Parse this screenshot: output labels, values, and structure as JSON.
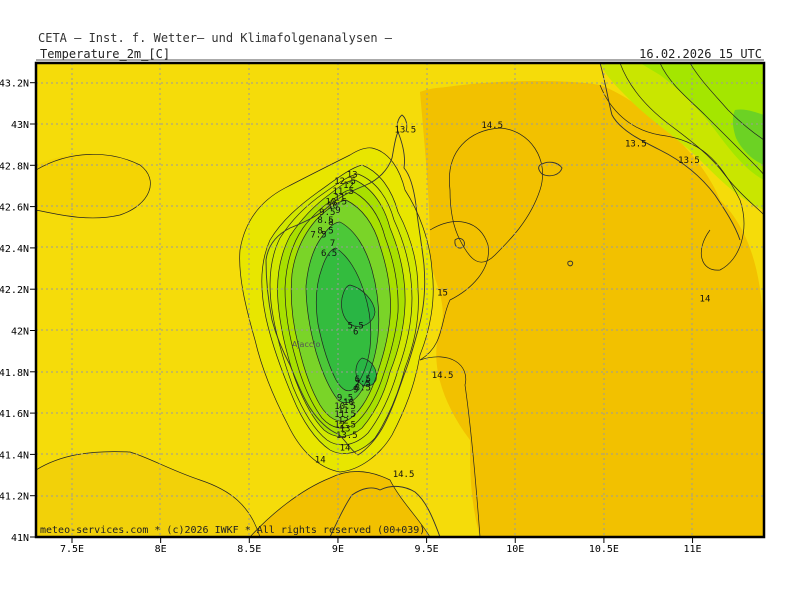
{
  "header": {
    "title": "CETA — Inst. f. Wetter— und Klimafolgenanalysen —",
    "variable": "Temperature_2m_[C]",
    "valid_time": "16.02.2026 15 UTC"
  },
  "footer": {
    "credit": "meteo-services.com * (c)2026 IWKF * All rights reserved (00+039)"
  },
  "axes": {
    "lon_ticks": [
      "7.5E",
      "8E",
      "8.5E",
      "9E",
      "9.5E",
      "10E",
      "10.5E",
      "11E"
    ],
    "lat_ticks": [
      "43.2N",
      "43N",
      "42.8N",
      "42.6N",
      "42.4N",
      "42.2N",
      "42N",
      "41.8N",
      "41.6N",
      "41.4N",
      "41.2N",
      "41N"
    ]
  },
  "places": [
    {
      "name": "Ajaccio",
      "lon": 8.74,
      "lat": 41.92
    }
  ],
  "contour_labels": [
    {
      "text": "13.5",
      "lon": 9.38,
      "lat": 42.96
    },
    {
      "text": "14.5",
      "lon": 9.87,
      "lat": 42.98
    },
    {
      "text": "13.5",
      "lon": 10.68,
      "lat": 42.89
    },
    {
      "text": "13.5",
      "lon": 10.98,
      "lat": 42.81
    },
    {
      "text": "14",
      "lon": 11.07,
      "lat": 42.14
    },
    {
      "text": "15",
      "lon": 9.59,
      "lat": 42.17
    },
    {
      "text": "14.5",
      "lon": 9.59,
      "lat": 41.77
    },
    {
      "text": "13",
      "lon": 9.08,
      "lat": 42.74
    },
    {
      "text": "12.5",
      "lon": 9.04,
      "lat": 42.71
    },
    {
      "text": "12",
      "lon": 9.06,
      "lat": 42.69
    },
    {
      "text": "11.5",
      "lon": 9.03,
      "lat": 42.66
    },
    {
      "text": "11",
      "lon": 9.01,
      "lat": 42.63
    },
    {
      "text": "10.5",
      "lon": 8.99,
      "lat": 42.61
    },
    {
      "text": "10",
      "lon": 8.97,
      "lat": 42.59
    },
    {
      "text": "9",
      "lon": 9.0,
      "lat": 42.57
    },
    {
      "text": "9.5",
      "lon": 8.94,
      "lat": 42.56
    },
    {
      "text": "8.5",
      "lon": 8.93,
      "lat": 42.52
    },
    {
      "text": "8",
      "lon": 8.96,
      "lat": 42.51
    },
    {
      "text": "8.5",
      "lon": 8.93,
      "lat": 42.47
    },
    {
      "text": "7.5",
      "lon": 8.89,
      "lat": 42.45
    },
    {
      "text": "7",
      "lon": 8.97,
      "lat": 42.41
    },
    {
      "text": "6.5",
      "lon": 8.95,
      "lat": 42.36
    },
    {
      "text": "5.5",
      "lon": 9.1,
      "lat": 42.01
    },
    {
      "text": "6",
      "lon": 9.1,
      "lat": 41.98
    },
    {
      "text": "6.5",
      "lon": 9.14,
      "lat": 41.75
    },
    {
      "text": "7.5",
      "lon": 9.14,
      "lat": 41.73
    },
    {
      "text": "8.5",
      "lon": 9.14,
      "lat": 41.71
    },
    {
      "text": "9",
      "lon": 9.1,
      "lat": 41.7
    },
    {
      "text": "9.5",
      "lon": 9.04,
      "lat": 41.66
    },
    {
      "text": "10",
      "lon": 9.06,
      "lat": 41.64
    },
    {
      "text": "10.5",
      "lon": 9.04,
      "lat": 41.62
    },
    {
      "text": "11",
      "lon": 9.03,
      "lat": 41.6
    },
    {
      "text": "11.5",
      "lon": 9.04,
      "lat": 41.58
    },
    {
      "text": "12",
      "lon": 9.03,
      "lat": 41.55
    },
    {
      "text": "12.5",
      "lon": 9.04,
      "lat": 41.53
    },
    {
      "text": "13",
      "lon": 9.04,
      "lat": 41.51
    },
    {
      "text": "13.5",
      "lon": 9.05,
      "lat": 41.48
    },
    {
      "text": "14",
      "lon": 9.04,
      "lat": 41.42
    },
    {
      "text": "14",
      "lon": 8.9,
      "lat": 41.36
    },
    {
      "text": "14.5",
      "lon": 9.37,
      "lat": 41.29
    }
  ],
  "colors": {
    "background_yellow": "#f5dc0a",
    "warm_orange": "#f2c200",
    "green_light": "#b4f000",
    "green_mid": "#5cd22a",
    "green_dark": "#2fba3a",
    "frame": "#000000",
    "grid": "#999999"
  }
}
